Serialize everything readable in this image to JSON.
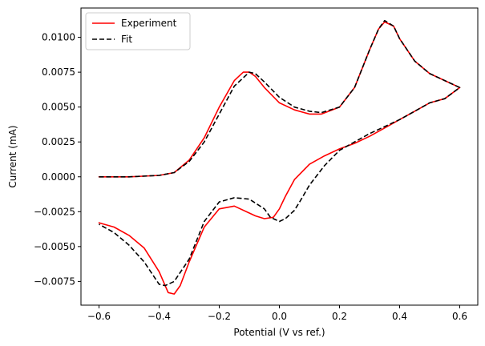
{
  "chart_data": {
    "type": "line",
    "title": "",
    "xlabel": "Potential (V vs ref.)",
    "ylabel": "Current (mA)",
    "xlim": [
      -0.66,
      0.66
    ],
    "ylim": [
      -0.0092,
      0.0121
    ],
    "xticks": [
      -0.6,
      -0.4,
      -0.2,
      0.0,
      0.2,
      0.4,
      0.6
    ],
    "xtick_labels": [
      "−0.6",
      "−0.4",
      "−0.2",
      "0.0",
      "0.2",
      "0.4",
      "0.6"
    ],
    "yticks": [
      -0.0075,
      -0.005,
      -0.0025,
      0.0,
      0.0025,
      0.005,
      0.0075,
      0.01
    ],
    "ytick_labels": [
      "−0.0075",
      "−0.0050",
      "−0.0025",
      "0.0000",
      "0.0025",
      "0.0050",
      "0.0075",
      "0.0100"
    ],
    "grid": false,
    "legend_position": "top-left",
    "series": [
      {
        "name": "Experiment",
        "color": "#ff0000",
        "dash": "solid",
        "x": [
          -0.6,
          -0.5,
          -0.4,
          -0.35,
          -0.3,
          -0.25,
          -0.2,
          -0.15,
          -0.12,
          -0.1,
          -0.08,
          -0.05,
          0.0,
          0.05,
          0.1,
          0.14,
          0.2,
          0.25,
          0.3,
          0.33,
          0.35,
          0.38,
          0.4,
          0.45,
          0.5,
          0.55,
          0.6,
          0.55,
          0.5,
          0.45,
          0.4,
          0.35,
          0.3,
          0.25,
          0.2,
          0.15,
          0.1,
          0.05,
          0.02,
          0.0,
          -0.02,
          -0.05,
          -0.08,
          -0.1,
          -0.15,
          -0.2,
          -0.25,
          -0.3,
          -0.33,
          -0.35,
          -0.37,
          -0.4,
          -0.45,
          -0.5,
          -0.55,
          -0.6
        ],
        "y": [
          0.0,
          0.0,
          0.0001,
          0.0003,
          0.0012,
          0.0028,
          0.005,
          0.0069,
          0.0075,
          0.0075,
          0.0072,
          0.0064,
          0.0053,
          0.0048,
          0.0045,
          0.0045,
          0.005,
          0.0064,
          0.0091,
          0.0106,
          0.0111,
          0.0108,
          0.0099,
          0.0083,
          0.0074,
          0.0069,
          0.0064,
          0.0056,
          0.0053,
          0.0047,
          0.0041,
          0.0035,
          0.0029,
          0.0024,
          0.002,
          0.0015,
          0.0009,
          -0.0002,
          -0.0014,
          -0.0023,
          -0.0029,
          -0.003,
          -0.0028,
          -0.0026,
          -0.0021,
          -0.0023,
          -0.0036,
          -0.0061,
          -0.0078,
          -0.0084,
          -0.0083,
          -0.0068,
          -0.0051,
          -0.0042,
          -0.0036,
          -0.0033
        ]
      },
      {
        "name": "Fit",
        "color": "#000000",
        "dash": "dashed",
        "x": [
          -0.6,
          -0.5,
          -0.4,
          -0.35,
          -0.3,
          -0.25,
          -0.2,
          -0.15,
          -0.1,
          -0.08,
          -0.05,
          0.0,
          0.05,
          0.1,
          0.14,
          0.2,
          0.25,
          0.3,
          0.33,
          0.35,
          0.38,
          0.4,
          0.45,
          0.5,
          0.55,
          0.6,
          0.55,
          0.5,
          0.45,
          0.4,
          0.35,
          0.3,
          0.25,
          0.2,
          0.15,
          0.1,
          0.07,
          0.05,
          0.02,
          0.0,
          -0.03,
          -0.05,
          -0.1,
          -0.15,
          -0.2,
          -0.25,
          -0.3,
          -0.35,
          -0.38,
          -0.4,
          -0.45,
          -0.5,
          -0.55,
          -0.6
        ],
        "y": [
          0.0,
          0.0,
          0.0001,
          0.0003,
          0.0011,
          0.0025,
          0.0045,
          0.0065,
          0.0075,
          0.0074,
          0.0068,
          0.0057,
          0.005,
          0.0047,
          0.0046,
          0.005,
          0.0064,
          0.0091,
          0.0106,
          0.0112,
          0.0108,
          0.0099,
          0.0083,
          0.0074,
          0.0069,
          0.0064,
          0.0056,
          0.0053,
          0.0047,
          0.0041,
          0.0036,
          0.0031,
          0.0025,
          0.0019,
          0.0008,
          -0.0006,
          -0.0017,
          -0.0024,
          -0.003,
          -0.0032,
          -0.0029,
          -0.0023,
          -0.0016,
          -0.0015,
          -0.0018,
          -0.0032,
          -0.0059,
          -0.0075,
          -0.0078,
          -0.0077,
          -0.0061,
          -0.0049,
          -0.004,
          -0.0034
        ]
      }
    ]
  }
}
